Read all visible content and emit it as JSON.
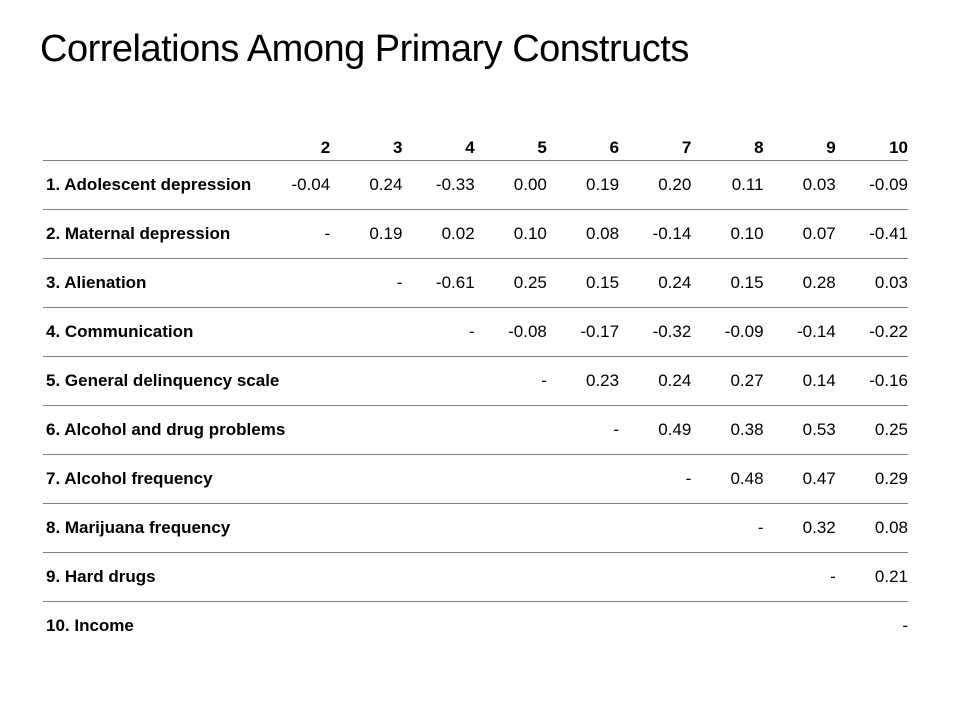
{
  "slide": {
    "title": "Correlations Among Primary Constructs"
  },
  "table": {
    "columns": [
      "",
      "2",
      "3",
      "4",
      "5",
      "6",
      "7",
      "8",
      "9",
      "10"
    ],
    "rows": [
      {
        "label": "1. Adolescent depression",
        "cells": [
          "-0.04",
          "0.24",
          "-0.33",
          "0.00",
          "0.19",
          "0.20",
          "0.11",
          "0.03",
          "-0.09"
        ]
      },
      {
        "label": "2. Maternal depression",
        "cells": [
          "-",
          "0.19",
          "0.02",
          "0.10",
          "0.08",
          "-0.14",
          "0.10",
          "0.07",
          "-0.41"
        ]
      },
      {
        "label": "3. Alienation",
        "cells": [
          "",
          "-",
          "-0.61",
          "0.25",
          "0.15",
          "0.24",
          "0.15",
          "0.28",
          "0.03"
        ]
      },
      {
        "label": "4. Communication",
        "cells": [
          "",
          "",
          "-",
          "-0.08",
          "-0.17",
          "-0.32",
          "-0.09",
          "-0.14",
          "-0.22"
        ]
      },
      {
        "label": "5. General delinquency scale",
        "cells": [
          "",
          "",
          "",
          "-",
          "0.23",
          "0.24",
          "0.27",
          "0.14",
          "-0.16"
        ]
      },
      {
        "label": "6. Alcohol and drug problems",
        "cells": [
          "",
          "",
          "",
          "",
          "-",
          "0.49",
          "0.38",
          "0.53",
          "0.25"
        ]
      },
      {
        "label": "7. Alcohol frequency",
        "cells": [
          "",
          "",
          "",
          "",
          "",
          "-",
          "0.48",
          "0.47",
          "0.29"
        ]
      },
      {
        "label": "8. Marijuana frequency",
        "cells": [
          "",
          "",
          "",
          "",
          "",
          "",
          "-",
          "0.32",
          "0.08"
        ]
      },
      {
        "label": "9. Hard drugs",
        "cells": [
          "",
          "",
          "",
          "",
          "",
          "",
          "",
          "-",
          "0.21"
        ]
      },
      {
        "label": "10. Income",
        "cells": [
          "",
          "",
          "",
          "",
          "",
          "",
          "",
          "",
          "-"
        ]
      }
    ]
  }
}
